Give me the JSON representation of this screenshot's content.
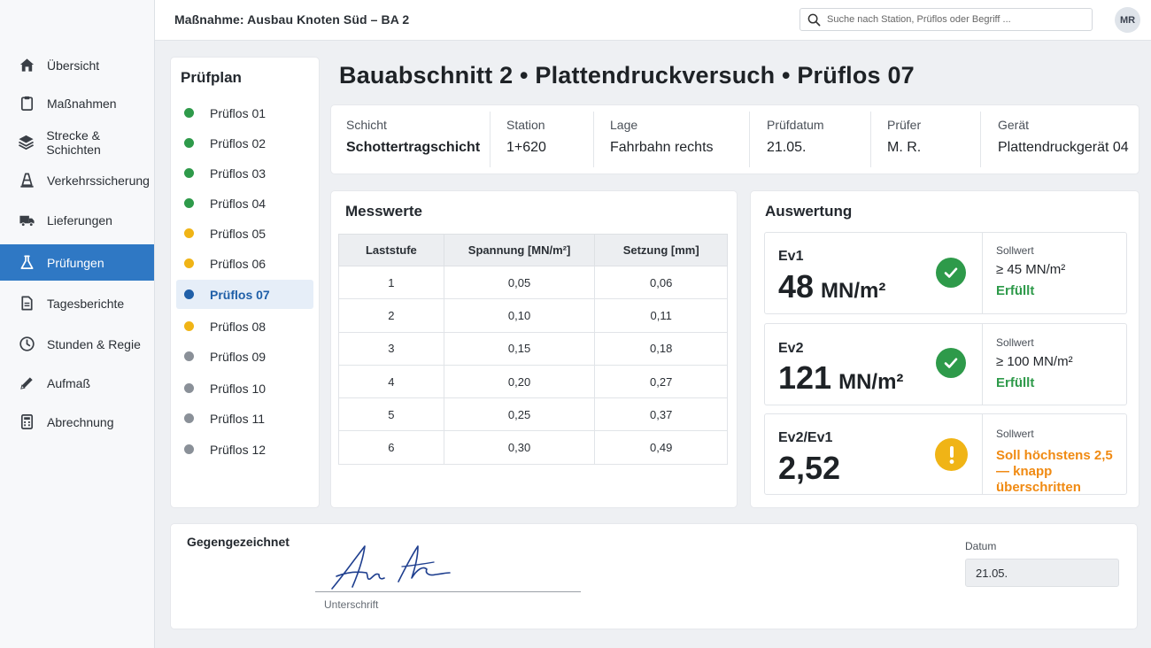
{
  "header": {
    "title": "Maßnahme: Ausbau Knoten Süd – BA 2",
    "search_placeholder": "Suche nach Station, Prüflos oder Begriff ...",
    "avatar": "MR"
  },
  "sidebar": {
    "items": [
      {
        "label": "Übersicht",
        "icon": "home-icon"
      },
      {
        "label": "Maßnahmen",
        "icon": "clipboard-icon"
      },
      {
        "label": "Strecke & Schichten",
        "icon": "layers-icon"
      },
      {
        "label": "Verkehrssicherung",
        "icon": "traffic-cone-icon"
      },
      {
        "label": "Lieferungen",
        "icon": "truck-icon"
      },
      {
        "label": "Prüfungen",
        "icon": "flask-icon",
        "active": true
      },
      {
        "label": "Tagesberichte",
        "icon": "document-icon"
      },
      {
        "label": "Stunden & Regie",
        "icon": "clock-icon"
      },
      {
        "label": "Aufmaß",
        "icon": "ruler-pencil-icon"
      },
      {
        "label": "Abrechnung",
        "icon": "calculator-icon"
      }
    ]
  },
  "plan": {
    "title": "Prüfplan",
    "lots": [
      {
        "label": "Prüflos 01",
        "status": "green"
      },
      {
        "label": "Prüflos 02",
        "status": "green"
      },
      {
        "label": "Prüflos 03",
        "status": "green"
      },
      {
        "label": "Prüflos 04",
        "status": "green"
      },
      {
        "label": "Prüflos 05",
        "status": "yellow"
      },
      {
        "label": "Prüflos 06",
        "status": "yellow"
      },
      {
        "label": "Prüflos 07",
        "status": "blue",
        "active": true
      },
      {
        "label": "Prüflos 08",
        "status": "yellow"
      },
      {
        "label": "Prüflos 09",
        "status": "gray"
      },
      {
        "label": "Prüflos 10",
        "status": "gray"
      },
      {
        "label": "Prüflos 11",
        "status": "gray"
      },
      {
        "label": "Prüflos 12",
        "status": "gray"
      }
    ],
    "colors": {
      "green": "#2e9a4a",
      "yellow": "#f0b416",
      "blue": "#1f5fa8",
      "gray": "#8a9098"
    }
  },
  "page": {
    "title": "Bauabschnitt 2 • Plattendruckversuch • Prüflos 07"
  },
  "info": {
    "schicht_label": "Schicht",
    "schicht": "Schottertragschicht",
    "station_label": "Station",
    "station": "1+620",
    "lage_label": "Lage",
    "lage": "Fahrbahn rechts",
    "datum_label": "Prüfdatum",
    "datum": "21.05.",
    "pruefer_label": "Prüfer",
    "pruefer": "M. R.",
    "geraet_label": "Gerät",
    "geraet": "Plattendruckgerät 04"
  },
  "messwerte": {
    "title": "Messwerte",
    "headers": [
      "Laststufe",
      "Spannung [MN/m²]",
      "Setzung [mm]"
    ],
    "rows": [
      [
        "1",
        "0,05",
        "0,06"
      ],
      [
        "2",
        "0,10",
        "0,11"
      ],
      [
        "3",
        "0,15",
        "0,18"
      ],
      [
        "4",
        "0,20",
        "0,27"
      ],
      [
        "5",
        "0,25",
        "0,37"
      ],
      [
        "6",
        "0,30",
        "0,49"
      ]
    ]
  },
  "auswertung": {
    "title": "Auswertung",
    "results": [
      {
        "key": "Ev1",
        "value": "48",
        "unit": "MN/m²",
        "soll_label": "Sollwert",
        "soll": "≥ 45 MN/m²",
        "status_text": "Erfüllt",
        "status": "ok",
        "status_color": "#2e9a4a"
      },
      {
        "key": "Ev2",
        "value": "121",
        "unit": "MN/m²",
        "soll_label": "Sollwert",
        "soll": "≥ 100 MN/m²",
        "status_text": "Erfüllt",
        "status": "ok",
        "status_color": "#2e9a4a"
      },
      {
        "key": "Ev2/Ev1",
        "value": "2,52",
        "unit": "",
        "soll_label": "Sollwert",
        "soll": "",
        "status_text": "Soll höchstens 2,5 — knapp überschritten",
        "status": "warn",
        "status_color": "#f08a12"
      }
    ]
  },
  "signature": {
    "title": "Gegengezeichnet",
    "line_label": "Unterschrift",
    "date_label": "Datum",
    "date_value": "21.05."
  }
}
